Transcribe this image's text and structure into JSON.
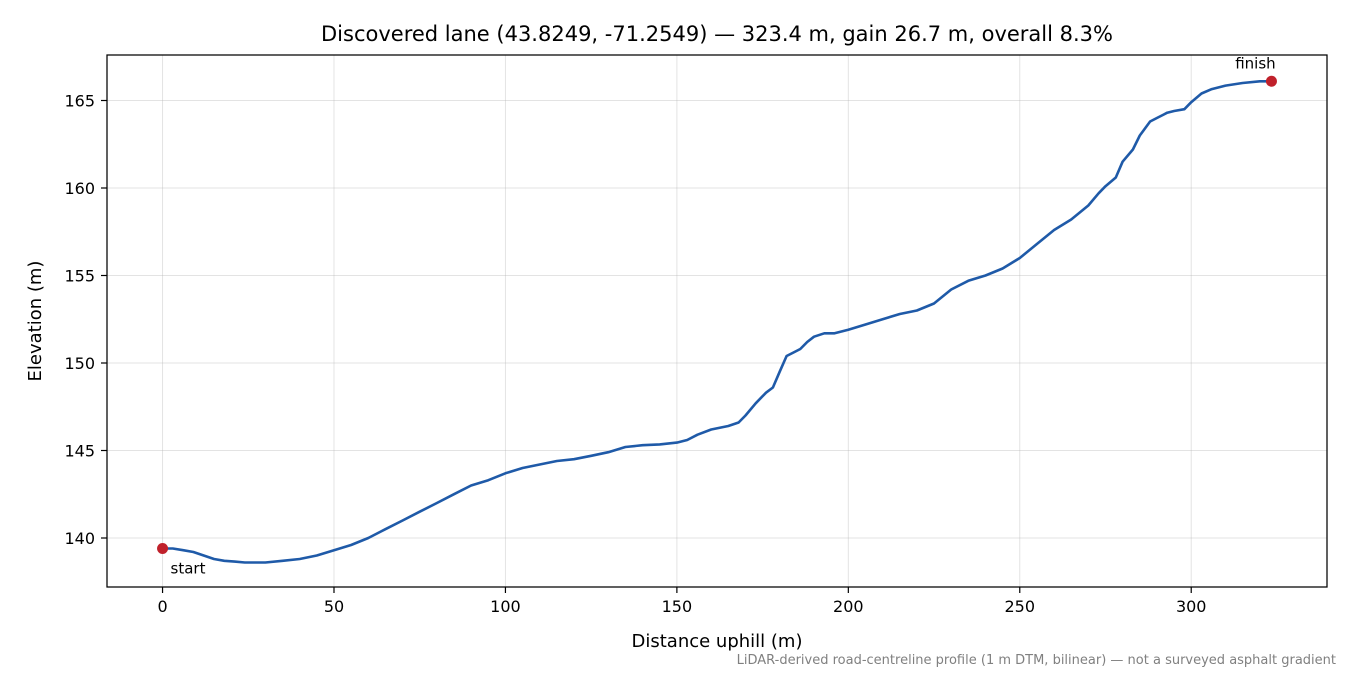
{
  "chart_data": {
    "type": "line",
    "title": "Discovered lane (43.8249, -71.2549) — 323.4 m, gain 26.7 m, overall 8.3%",
    "xlabel": "Distance uphill (m)",
    "ylabel": "Elevation (m)",
    "xlim": [
      -16.2,
      339.6
    ],
    "ylim": [
      137.2,
      167.6
    ],
    "xticks": [
      0,
      50,
      100,
      150,
      200,
      250,
      300
    ],
    "yticks": [
      140,
      145,
      150,
      155,
      160,
      165
    ],
    "grid": true,
    "line_color": "#1f5aa8",
    "marker_color": "#c0212b",
    "series": [
      {
        "x": [
          0,
          3,
          6,
          9,
          12,
          15,
          18,
          21,
          24,
          27,
          30,
          35,
          40,
          45,
          50,
          55,
          60,
          65,
          70,
          75,
          80,
          85,
          90,
          95,
          100,
          105,
          110,
          115,
          120,
          125,
          130,
          135,
          140,
          145,
          150,
          153,
          156,
          160,
          165,
          168,
          170,
          173,
          176,
          178,
          180,
          182,
          184,
          186,
          188,
          190,
          193,
          196,
          200,
          205,
          210,
          215,
          220,
          225,
          230,
          235,
          240,
          245,
          250,
          255,
          260,
          265,
          270,
          273,
          275,
          278,
          280,
          283,
          285,
          288,
          290,
          292,
          293,
          295,
          298,
          300,
          303,
          306,
          310,
          315,
          320,
          323.4
        ],
        "values": [
          139.4,
          139.4,
          139.3,
          139.2,
          139.0,
          138.8,
          138.7,
          138.65,
          138.6,
          138.6,
          138.6,
          138.7,
          138.8,
          139.0,
          139.3,
          139.6,
          140.0,
          140.5,
          141.0,
          141.5,
          142.0,
          142.5,
          143.0,
          143.3,
          143.7,
          144.0,
          144.2,
          144.4,
          144.5,
          144.7,
          144.9,
          145.2,
          145.3,
          145.35,
          145.45,
          145.6,
          145.9,
          146.2,
          146.4,
          146.6,
          147.0,
          147.7,
          148.3,
          148.6,
          149.5,
          150.4,
          150.6,
          150.8,
          151.2,
          151.5,
          151.7,
          151.7,
          151.9,
          152.2,
          152.5,
          152.8,
          153.0,
          153.4,
          154.2,
          154.7,
          155.0,
          155.4,
          156.0,
          156.8,
          157.6,
          158.2,
          159.0,
          159.7,
          160.1,
          160.6,
          161.5,
          162.2,
          163.0,
          163.8,
          164.0,
          164.2,
          164.3,
          164.4,
          164.5,
          164.9,
          165.4,
          165.65,
          165.85,
          166.0,
          166.1,
          166.1
        ]
      }
    ],
    "annotations": [
      {
        "text": "start",
        "x": 0,
        "y": 139.4
      },
      {
        "text": "finish",
        "x": 323.4,
        "y": 166.1
      }
    ],
    "footnote": "LiDAR-derived road-centreline profile (1 m DTM, bilinear) — not a surveyed asphalt gradient"
  }
}
